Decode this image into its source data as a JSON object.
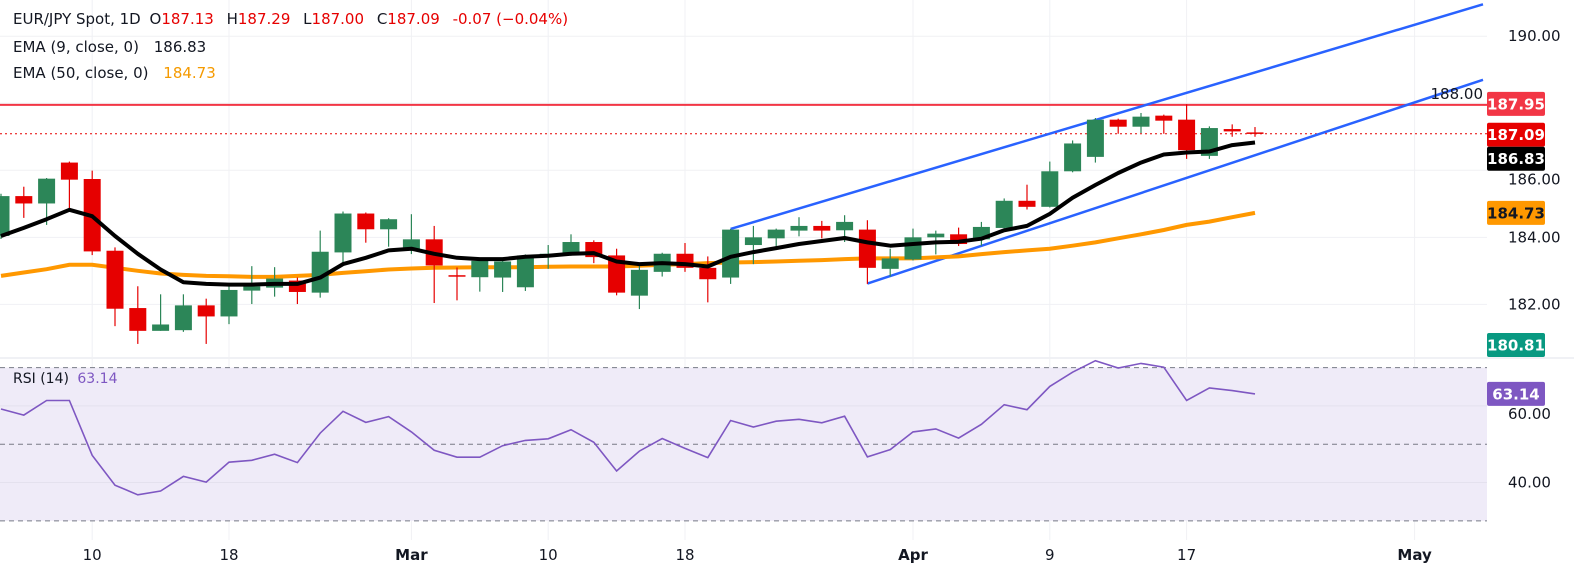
{
  "header": {
    "symbol": "EUR/JPY Spot, 1D",
    "o_label": "O",
    "o": "187.13",
    "h_label": "H",
    "h": "187.29",
    "l_label": "L",
    "l": "187.00",
    "c_label": "C",
    "c": "187.09",
    "change": "-0.07 (−0.04%)",
    "ema9_label": "EMA (9, close, 0)",
    "ema9_value": "186.83",
    "ema50_label": "EMA (50, close, 0)",
    "ema50_value": "184.73",
    "rsi_label": "RSI (14)",
    "rsi_value": "63.14"
  },
  "price_tags": {
    "resistance": "187.95",
    "last": "187.09",
    "ema9": "186.83",
    "ema50": "184.73",
    "low": "180.81",
    "rsi": "63.14"
  },
  "colors": {
    "up": "#2c8658",
    "down": "#e60000",
    "ema9": "#000000",
    "ema50": "#ff9800",
    "trendline": "#2962ff",
    "resistance": "#f23645",
    "rsi": "#7e57c2",
    "rsi_band": "#efebf8",
    "low_tag": "#089981"
  },
  "chart_data": {
    "type": "candlestick",
    "ylim": [
      180.4,
      191.08
    ],
    "y_ticks": [
      "182.00",
      "184.00",
      "186.00",
      "188.00",
      "190.00"
    ],
    "x_ticks": [
      {
        "label": "10",
        "date": "Feb 10"
      },
      {
        "label": "18",
        "date": "Feb 18"
      },
      {
        "label": "Mar",
        "date": "Mar 2"
      },
      {
        "label": "10",
        "date": "Mar 10"
      },
      {
        "label": "18",
        "date": "Mar 18"
      },
      {
        "label": "Apr",
        "date": "Apr 1"
      },
      {
        "label": "9",
        "date": "Apr 9"
      },
      {
        "label": "17",
        "date": "Apr 17"
      },
      {
        "label": "May",
        "date": "May 1"
      }
    ],
    "candles": [
      {
        "d": "Feb 4",
        "o": 184.04,
        "h": 185.3,
        "l": 183.95,
        "c": 185.23
      },
      {
        "d": "Feb 5",
        "o": 185.23,
        "h": 185.51,
        "l": 184.58,
        "c": 185.01
      },
      {
        "d": "Feb 6",
        "o": 185.01,
        "h": 185.77,
        "l": 184.37,
        "c": 185.75
      },
      {
        "d": "Feb 9",
        "o": 186.23,
        "h": 186.26,
        "l": 184.85,
        "c": 185.72
      },
      {
        "d": "Feb 10",
        "o": 185.74,
        "h": 185.99,
        "l": 183.47,
        "c": 183.58
      },
      {
        "d": "Feb 11",
        "o": 183.6,
        "h": 183.7,
        "l": 181.35,
        "c": 181.87
      },
      {
        "d": "Feb 12",
        "o": 181.89,
        "h": 182.54,
        "l": 180.82,
        "c": 181.21
      },
      {
        "d": "Feb 13",
        "o": 181.21,
        "h": 182.3,
        "l": 181.21,
        "c": 181.4
      },
      {
        "d": "Feb 16",
        "o": 181.23,
        "h": 182.3,
        "l": 181.18,
        "c": 181.97
      },
      {
        "d": "Feb 17",
        "o": 181.97,
        "h": 182.17,
        "l": 180.82,
        "c": 181.64
      },
      {
        "d": "Feb 18",
        "o": 181.64,
        "h": 182.54,
        "l": 181.41,
        "c": 182.43
      },
      {
        "d": "Feb 19",
        "o": 182.41,
        "h": 183.14,
        "l": 182.01,
        "c": 182.54
      },
      {
        "d": "Feb 20",
        "o": 182.5,
        "h": 183.11,
        "l": 182.23,
        "c": 182.77
      },
      {
        "d": "Feb 23",
        "o": 182.71,
        "h": 182.8,
        "l": 182.01,
        "c": 182.37
      },
      {
        "d": "Feb 24",
        "o": 182.35,
        "h": 184.2,
        "l": 182.2,
        "c": 183.57
      },
      {
        "d": "Feb 25",
        "o": 183.55,
        "h": 184.77,
        "l": 183.21,
        "c": 184.71
      },
      {
        "d": "Feb 26",
        "o": 184.71,
        "h": 184.74,
        "l": 183.84,
        "c": 184.24
      },
      {
        "d": "Feb 27",
        "o": 184.24,
        "h": 184.57,
        "l": 183.72,
        "c": 184.54
      },
      {
        "d": "Mar 2",
        "o": 183.64,
        "h": 184.69,
        "l": 183.5,
        "c": 183.94
      },
      {
        "d": "Mar 3",
        "o": 183.94,
        "h": 184.34,
        "l": 182.04,
        "c": 183.16
      },
      {
        "d": "Mar 4",
        "o": 182.87,
        "h": 183.1,
        "l": 182.12,
        "c": 182.84
      },
      {
        "d": "Mar 5",
        "o": 182.81,
        "h": 183.3,
        "l": 182.38,
        "c": 183.3
      },
      {
        "d": "Mar 6",
        "o": 182.8,
        "h": 183.32,
        "l": 182.37,
        "c": 183.28
      },
      {
        "d": "Mar 9",
        "o": 182.51,
        "h": 183.49,
        "l": 182.4,
        "c": 183.46
      },
      {
        "d": "Mar 10",
        "o": 183.45,
        "h": 183.77,
        "l": 183.06,
        "c": 183.51
      },
      {
        "d": "Mar 11",
        "o": 183.49,
        "h": 184.09,
        "l": 183.45,
        "c": 183.86
      },
      {
        "d": "Mar 12",
        "o": 183.86,
        "h": 183.91,
        "l": 183.23,
        "c": 183.41
      },
      {
        "d": "Mar 13",
        "o": 183.46,
        "h": 183.66,
        "l": 182.27,
        "c": 182.35
      },
      {
        "d": "Mar 16",
        "o": 182.26,
        "h": 183.17,
        "l": 181.86,
        "c": 183.03
      },
      {
        "d": "Mar 17",
        "o": 182.97,
        "h": 183.54,
        "l": 182.83,
        "c": 183.51
      },
      {
        "d": "Mar 18",
        "o": 183.51,
        "h": 183.83,
        "l": 182.97,
        "c": 183.09
      },
      {
        "d": "Mar 19",
        "o": 183.09,
        "h": 183.43,
        "l": 182.06,
        "c": 182.75
      },
      {
        "d": "Mar 20",
        "o": 182.8,
        "h": 184.25,
        "l": 182.61,
        "c": 184.23
      },
      {
        "d": "Mar 23",
        "o": 183.77,
        "h": 184.34,
        "l": 183.2,
        "c": 184.0
      },
      {
        "d": "Mar 24",
        "o": 183.97,
        "h": 184.26,
        "l": 183.63,
        "c": 184.23
      },
      {
        "d": "Mar 25",
        "o": 184.2,
        "h": 184.6,
        "l": 184.03,
        "c": 184.34
      },
      {
        "d": "Mar 26",
        "o": 184.34,
        "h": 184.49,
        "l": 183.97,
        "c": 184.2
      },
      {
        "d": "Mar 27",
        "o": 184.21,
        "h": 184.66,
        "l": 183.86,
        "c": 184.46
      },
      {
        "d": "Mar 30",
        "o": 184.23,
        "h": 184.51,
        "l": 182.61,
        "c": 183.09
      },
      {
        "d": "Mar 31",
        "o": 183.06,
        "h": 183.66,
        "l": 182.83,
        "c": 183.37
      },
      {
        "d": "Apr 1",
        "o": 183.34,
        "h": 184.26,
        "l": 183.31,
        "c": 184.0
      },
      {
        "d": "Apr 2",
        "o": 184.0,
        "h": 184.2,
        "l": 183.49,
        "c": 184.11
      },
      {
        "d": "Apr 3",
        "o": 184.09,
        "h": 184.29,
        "l": 183.74,
        "c": 183.8
      },
      {
        "d": "Apr 6",
        "o": 183.94,
        "h": 184.46,
        "l": 183.75,
        "c": 184.31
      },
      {
        "d": "Apr 7",
        "o": 184.28,
        "h": 185.16,
        "l": 184.25,
        "c": 185.09
      },
      {
        "d": "Apr 8",
        "o": 185.09,
        "h": 185.57,
        "l": 184.83,
        "c": 184.91
      },
      {
        "d": "Apr 9",
        "o": 184.91,
        "h": 186.26,
        "l": 184.89,
        "c": 185.97
      },
      {
        "d": "Apr 10",
        "o": 185.97,
        "h": 186.89,
        "l": 185.94,
        "c": 186.8
      },
      {
        "d": "Apr 13",
        "o": 186.4,
        "h": 187.56,
        "l": 186.23,
        "c": 187.51
      },
      {
        "d": "Apr 14",
        "o": 187.51,
        "h": 187.54,
        "l": 187.09,
        "c": 187.3
      },
      {
        "d": "Apr 15",
        "o": 187.3,
        "h": 187.71,
        "l": 187.11,
        "c": 187.6
      },
      {
        "d": "Apr 16",
        "o": 187.63,
        "h": 187.66,
        "l": 187.09,
        "c": 187.48
      },
      {
        "d": "Apr 17",
        "o": 187.51,
        "h": 187.97,
        "l": 186.34,
        "c": 186.6
      },
      {
        "d": "Apr 20",
        "o": 186.43,
        "h": 187.31,
        "l": 186.34,
        "c": 187.26
      },
      {
        "d": "Apr 21",
        "o": 187.23,
        "h": 187.37,
        "l": 187.0,
        "c": 187.16
      },
      {
        "d": "Apr 22",
        "o": 187.13,
        "h": 187.29,
        "l": 187.0,
        "c": 187.09
      }
    ],
    "ema9": [
      184.04,
      184.28,
      184.54,
      184.82,
      184.63,
      184.04,
      183.51,
      183.04,
      182.66,
      182.61,
      182.59,
      182.59,
      182.61,
      182.61,
      182.8,
      183.2,
      183.39,
      183.61,
      183.66,
      183.51,
      183.39,
      183.35,
      183.35,
      183.42,
      183.45,
      183.51,
      183.53,
      183.28,
      183.2,
      183.23,
      183.2,
      183.13,
      183.42,
      183.56,
      183.68,
      183.8,
      183.89,
      183.98,
      183.85,
      183.75,
      183.8,
      183.85,
      183.87,
      183.96,
      184.21,
      184.34,
      184.7,
      185.18,
      185.56,
      185.92,
      186.23,
      186.47,
      186.53,
      186.56,
      186.75,
      186.83
    ],
    "ema50": [
      182.85,
      182.95,
      183.05,
      183.18,
      183.18,
      183.09,
      183.0,
      182.92,
      182.88,
      182.85,
      182.84,
      182.82,
      182.82,
      182.85,
      182.88,
      182.94,
      182.99,
      183.04,
      183.07,
      183.09,
      183.1,
      183.11,
      183.11,
      183.11,
      183.12,
      183.13,
      183.13,
      183.13,
      183.15,
      183.18,
      183.2,
      183.23,
      183.25,
      183.26,
      183.28,
      183.3,
      183.32,
      183.35,
      183.37,
      183.37,
      183.37,
      183.4,
      183.43,
      183.5,
      183.56,
      183.61,
      183.66,
      183.75,
      183.85,
      183.97,
      184.09,
      184.22,
      184.37,
      184.47,
      184.6,
      184.73
    ],
    "resistance_level": 187.95,
    "trendlines": [
      {
        "from": {
          "d": "Mar 20",
          "p": 184.25
        },
        "to": {
          "d": "May 6",
          "p": 190.95
        }
      },
      {
        "from": {
          "d": "Mar 30",
          "p": 182.62
        },
        "to": {
          "d": "May 6",
          "p": 188.7
        }
      }
    ],
    "rsi": {
      "ylim": [
        25,
        72.5
      ],
      "levels": [
        70,
        50,
        30
      ],
      "y_ticks": [
        "40.00",
        "60.00"
      ],
      "values": [
        59.2,
        57.6,
        61.4,
        61.4,
        47.1,
        39.3,
        36.8,
        37.8,
        41.6,
        40.1,
        45.3,
        45.8,
        47.4,
        45.2,
        52.9,
        58.6,
        55.7,
        57.2,
        53.2,
        48.4,
        46.6,
        46.6,
        49.6,
        51.0,
        51.4,
        53.8,
        50.5,
        43.0,
        48.2,
        51.5,
        48.9,
        46.5,
        56.2,
        54.5,
        56.0,
        56.5,
        55.6,
        57.3,
        46.7,
        48.6,
        53.2,
        54.0,
        51.6,
        55.2,
        60.3,
        59.0,
        65.1,
        68.8,
        71.8,
        69.9,
        71.1,
        70.1,
        61.4,
        64.7,
        64.0,
        63.14
      ]
    }
  }
}
